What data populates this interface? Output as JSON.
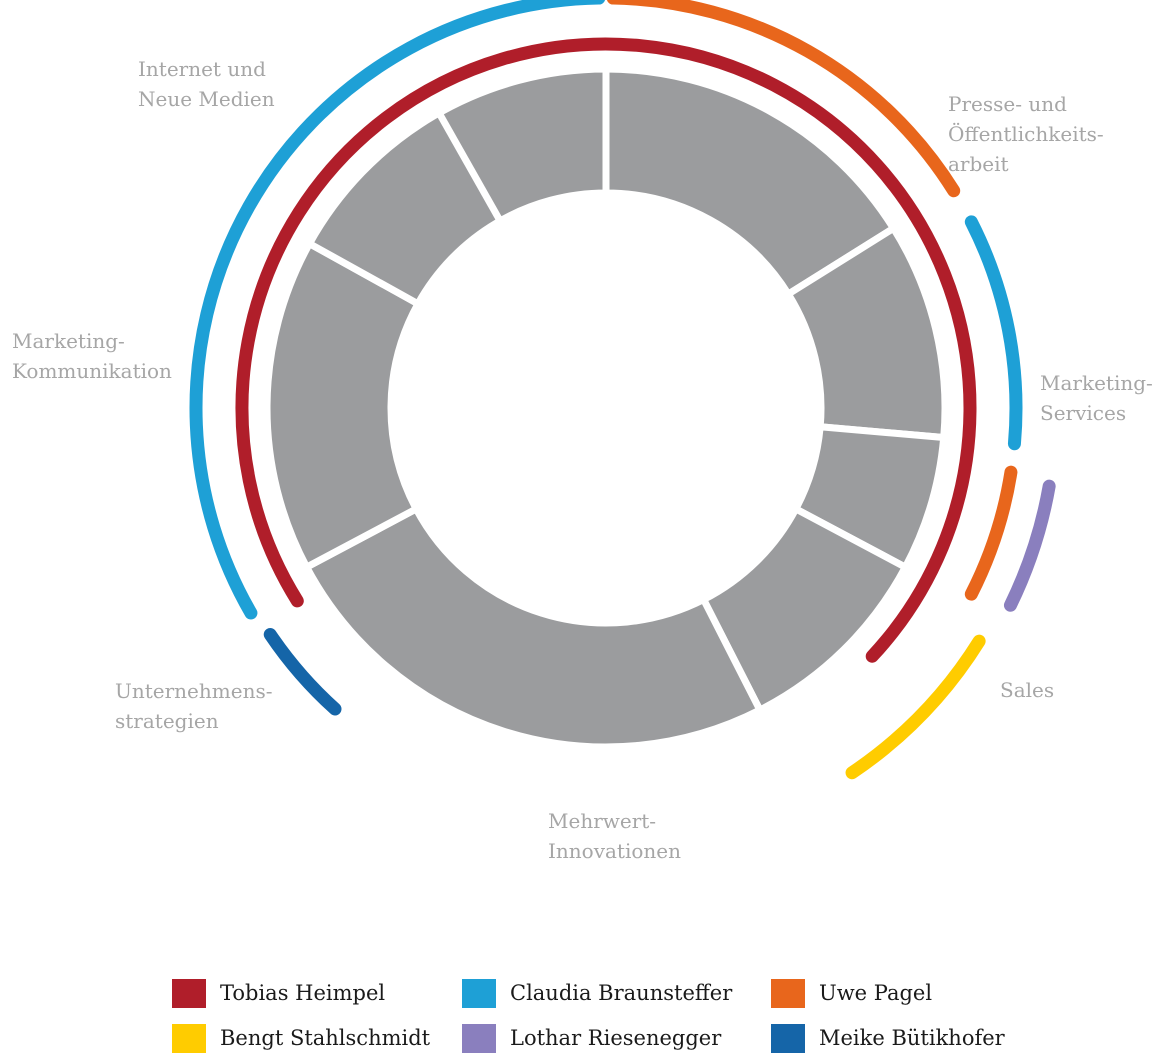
{
  "sections": [
    {
      "id": "internet",
      "label_lines": [
        "Internet und",
        "Neue Medien"
      ]
    },
    {
      "id": "presse",
      "label_lines": [
        "Presse- und",
        "Öffentlichkeits-",
        "arbeit"
      ]
    },
    {
      "id": "marketing-services",
      "label_lines": [
        "Marketing-",
        "Services"
      ]
    },
    {
      "id": "sales",
      "label_lines": [
        "Sales"
      ]
    },
    {
      "id": "mehrwert",
      "label_lines": [
        "Mehrwert-",
        "Innovationen"
      ]
    },
    {
      "id": "unternehmen",
      "label_lines": [
        "Unternehmens-",
        "strategien"
      ]
    },
    {
      "id": "marketing-kommunikation",
      "label_lines": [
        "Marketing-",
        "Kommunikation"
      ]
    }
  ],
  "ring_color": "#9b9c9e",
  "legend": [
    {
      "name": "Tobias Heimpel",
      "color": "#b01e2a"
    },
    {
      "name": "Claudia Braunsteffer",
      "color": "#1ea0d6"
    },
    {
      "name": "Uwe Pagel",
      "color": "#e8661c"
    },
    {
      "name": "Bengt Stahlschmidt",
      "color": "#ffcc00"
    },
    {
      "name": "Lothar Riesenegger",
      "color": "#8a7fbe"
    },
    {
      "name": "Meike Bütikhofer",
      "color": "#1565a8"
    }
  ]
}
